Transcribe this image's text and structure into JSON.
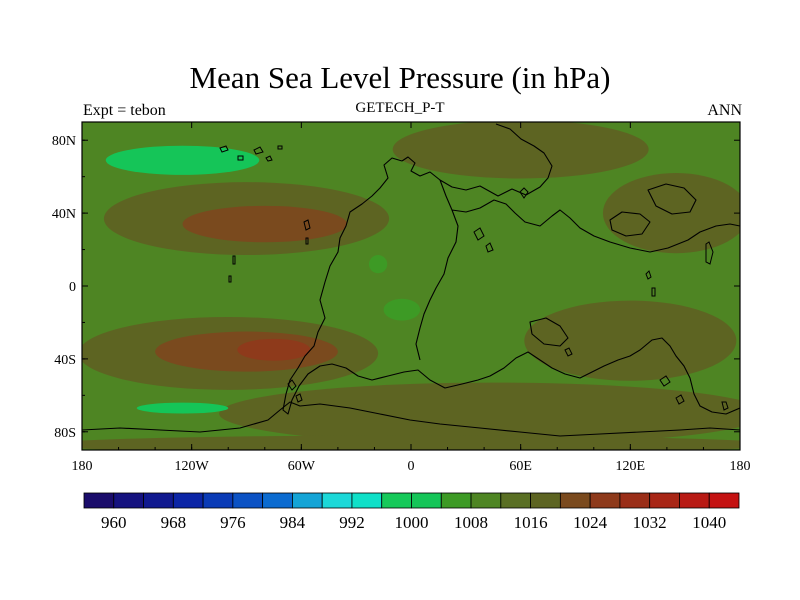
{
  "chart_data": {
    "type": "heatmap",
    "title": "Mean Sea Level Pressure (in hPa)",
    "left_label": "Expt = tebon",
    "center_label": "GETECH_P-T",
    "right_label": "ANN",
    "xlim": [
      -180,
      180
    ],
    "ylim": [
      -90,
      90
    ],
    "x_ticks": [
      {
        "value": -180,
        "label": "180"
      },
      {
        "value": -120,
        "label": "120W"
      },
      {
        "value": -60,
        "label": "60W"
      },
      {
        "value": 0,
        "label": "0"
      },
      {
        "value": 60,
        "label": "60E"
      },
      {
        "value": 120,
        "label": "120E"
      },
      {
        "value": 180,
        "label": "180"
      }
    ],
    "y_ticks": [
      {
        "value": 80,
        "label": "80N"
      },
      {
        "value": 40,
        "label": "40N"
      },
      {
        "value": 0,
        "label": "0"
      },
      {
        "value": -40,
        "label": "40S"
      },
      {
        "value": -80,
        "label": "80S"
      }
    ],
    "background_level": 1008,
    "contour_regions": [
      {
        "level": 1016,
        "cx": -90,
        "cy": 37,
        "rx": 78,
        "ry": 20
      },
      {
        "level": 1020,
        "cx": -80,
        "cy": 34,
        "rx": 45,
        "ry": 10
      },
      {
        "level": 1016,
        "cx": -100,
        "cy": -37,
        "rx": 82,
        "ry": 20
      },
      {
        "level": 1020,
        "cx": -90,
        "cy": -36,
        "rx": 50,
        "ry": 11
      },
      {
        "level": 1024,
        "cx": -75,
        "cy": -35,
        "rx": 20,
        "ry": 6
      },
      {
        "level": 1016,
        "cx": 60,
        "cy": 75,
        "rx": 70,
        "ry": 16
      },
      {
        "level": 1016,
        "cx": 145,
        "cy": 40,
        "rx": 40,
        "ry": 22
      },
      {
        "level": 1016,
        "cx": 120,
        "cy": -30,
        "rx": 58,
        "ry": 22
      },
      {
        "level": 1016,
        "cx": 45,
        "cy": -70,
        "rx": 150,
        "ry": 17
      },
      {
        "level": 1016,
        "cx": 0,
        "cy": -87,
        "rx": 200,
        "ry": 5
      },
      {
        "level": 1000,
        "cx": -125,
        "cy": 69,
        "rx": 42,
        "ry": 8
      },
      {
        "level": 1000,
        "cx": -125,
        "cy": -67,
        "rx": 25,
        "ry": 3
      },
      {
        "level": 1004,
        "cx": -5,
        "cy": -13,
        "rx": 10,
        "ry": 6
      },
      {
        "level": 1004,
        "cx": -18,
        "cy": 12,
        "rx": 5,
        "ry": 5
      }
    ],
    "colorbar": {
      "colors": [
        "#1a0c6b",
        "#15127f",
        "#10198f",
        "#0b25a6",
        "#0a3bb6",
        "#0b52c4",
        "#0b6bd0",
        "#14a4d6",
        "#1cd8d8",
        "#0fe0c8",
        "#16c95a",
        "#15c558",
        "#3d9a25",
        "#4e8523",
        "#5a6f24",
        "#5d6422",
        "#7a4a1e",
        "#8e3a1b",
        "#9a2e18",
        "#a82616",
        "#b81a14",
        "#c41212"
      ],
      "labels": [
        "960",
        "968",
        "976",
        "984",
        "992",
        "1000",
        "1008",
        "1016",
        "1024",
        "1032",
        "1040"
      ],
      "min": 956,
      "step": 4
    }
  }
}
